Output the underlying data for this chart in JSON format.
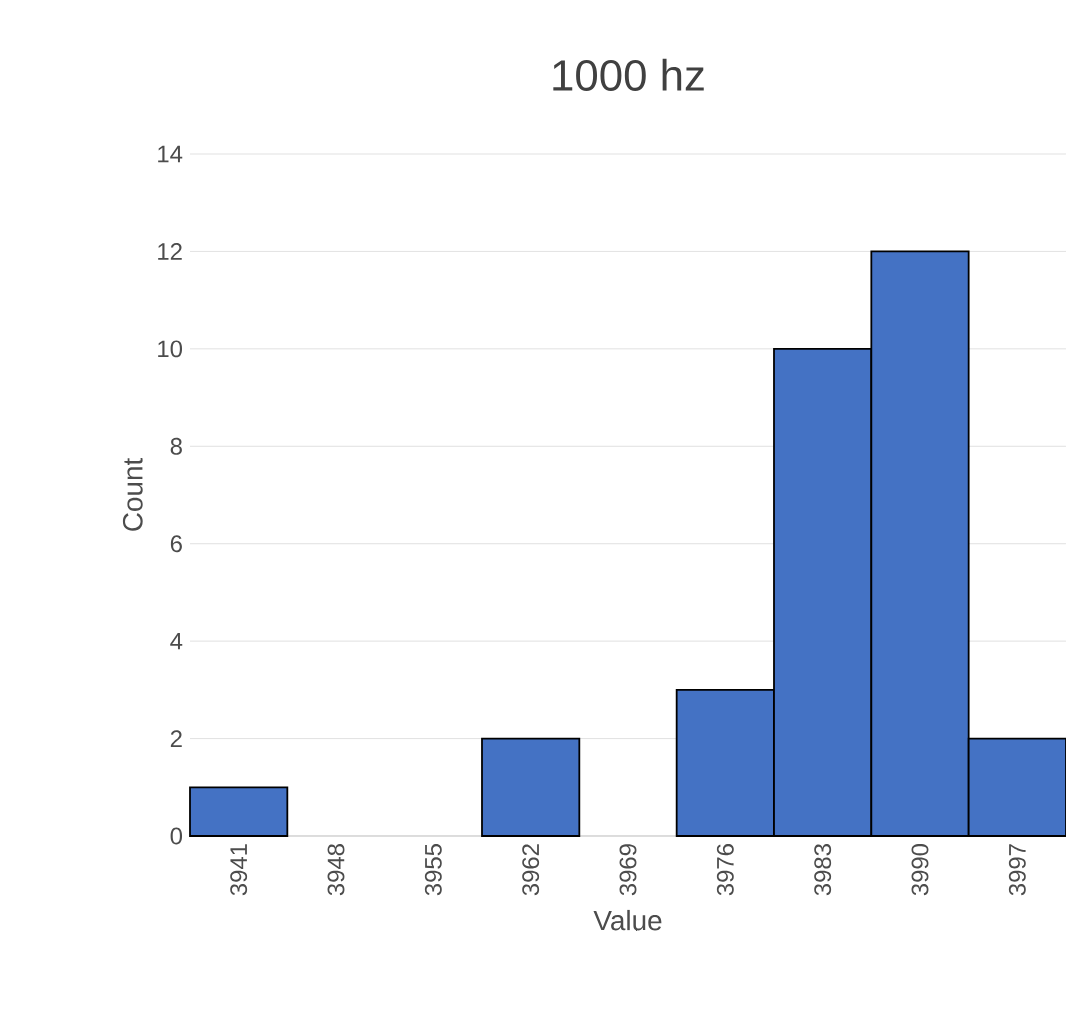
{
  "chart_data": {
    "type": "bar",
    "title": "1000 hz",
    "xlabel": "Value",
    "ylabel": "Count",
    "categories": [
      "3941",
      "3948",
      "3955",
      "3962",
      "3969",
      "3976",
      "3983",
      "3990",
      "3997"
    ],
    "values": [
      1,
      0,
      0,
      2,
      0,
      3,
      10,
      12,
      2
    ],
    "color": "#4472c4",
    "ylim": [
      0,
      14
    ],
    "yticks": [
      0,
      2,
      4,
      6,
      8,
      10,
      12,
      14
    ],
    "grid": "y"
  }
}
